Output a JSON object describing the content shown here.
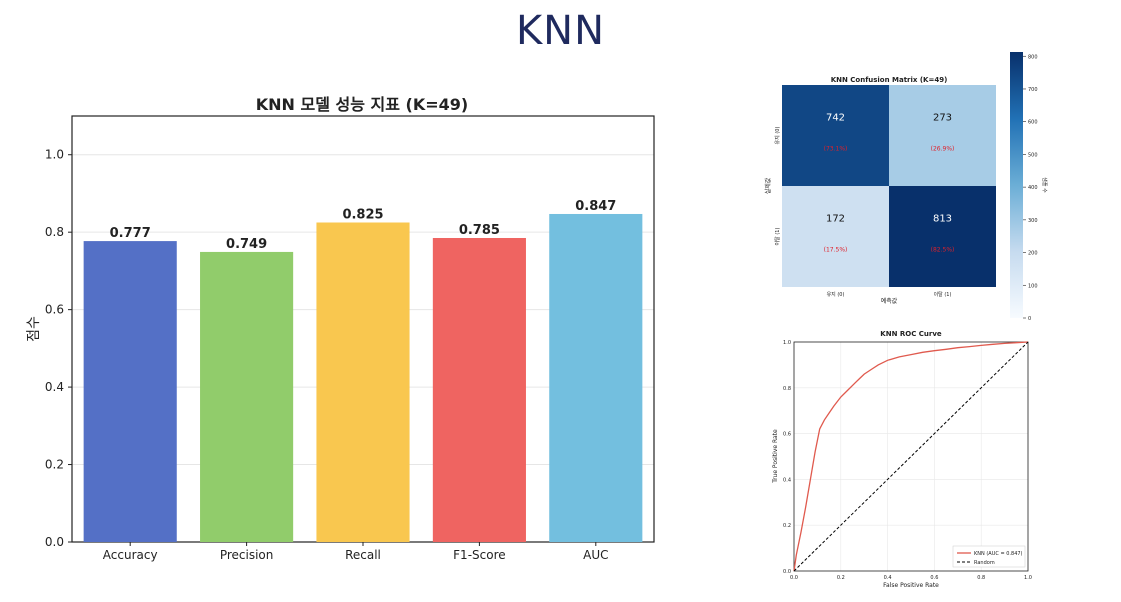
{
  "slide": {
    "title": "KNN"
  },
  "colors": {
    "bars": [
      "#5470c6",
      "#91cc6b",
      "#f9c74f",
      "#ef6461",
      "#73bfdf"
    ],
    "heat_low": "#f7fbff",
    "heat_high": "#08306b",
    "roc_line": "#e05a4e",
    "random_line": "#000000",
    "pct_text": "#e0202a"
  },
  "chart_data": [
    {
      "type": "bar",
      "title": "KNN 모델 성능 지표 (K=49)",
      "xlabel": "",
      "ylabel": "점수",
      "categories": [
        "Accuracy",
        "Precision",
        "Recall",
        "F1-Score",
        "AUC"
      ],
      "values": [
        0.777,
        0.749,
        0.825,
        0.785,
        0.847
      ],
      "value_labels": [
        "0.777",
        "0.749",
        "0.825",
        "0.785",
        "0.847"
      ],
      "ylim": [
        0,
        1.1
      ],
      "yticks": [
        "0.0",
        "0.2",
        "0.4",
        "0.6",
        "0.8",
        "1.0"
      ],
      "grid": true
    },
    {
      "type": "heatmap",
      "title": "KNN Confusion Matrix (K=49)",
      "xlabel": "예측값",
      "ylabel": "실제값",
      "x_categories": [
        "유지 (0)",
        "이탈 (1)"
      ],
      "y_categories": [
        "유지 (0)",
        "이탈 (1)"
      ],
      "values": [
        [
          742,
          273
        ],
        [
          172,
          813
        ]
      ],
      "cell_labels": [
        [
          "742",
          "273"
        ],
        [
          "172",
          "813"
        ]
      ],
      "percent_labels": [
        [
          "(73.1%)",
          "(26.9%)"
        ],
        [
          "(17.5%)",
          "(82.5%)"
        ]
      ],
      "colorbar_label": "샘플 수",
      "colorbar_ticks": [
        "0",
        "100",
        "200",
        "300",
        "400",
        "500",
        "600",
        "700",
        "800"
      ],
      "colorbar_range": [
        0,
        813
      ]
    },
    {
      "type": "line",
      "title": "KNN ROC Curve",
      "xlabel": "False Positive Rate",
      "ylabel": "True Positive Rate",
      "xlim": [
        0,
        1
      ],
      "ylim": [
        0,
        1
      ],
      "xticks": [
        "0.0",
        "0.2",
        "0.4",
        "0.6",
        "0.8",
        "1.0"
      ],
      "yticks": [
        "0.0",
        "0.2",
        "0.4",
        "0.6",
        "0.8",
        "1.0"
      ],
      "grid": true,
      "legend": "bottom-right",
      "series": [
        {
          "name": "KNN (AUC = 0.847)",
          "x": [
            0,
            0.01,
            0.03,
            0.05,
            0.07,
            0.09,
            0.11,
            0.13,
            0.15,
            0.17,
            0.2,
            0.23,
            0.26,
            0.28,
            0.3,
            0.33,
            0.36,
            0.4,
            0.45,
            0.5,
            0.55,
            0.6,
            0.65,
            0.7,
            0.75,
            0.8,
            0.85,
            0.9,
            0.95,
            1.0
          ],
          "y": [
            0,
            0.07,
            0.17,
            0.28,
            0.4,
            0.52,
            0.62,
            0.66,
            0.69,
            0.72,
            0.76,
            0.79,
            0.82,
            0.84,
            0.86,
            0.88,
            0.9,
            0.92,
            0.935,
            0.945,
            0.955,
            0.962,
            0.968,
            0.975,
            0.98,
            0.985,
            0.99,
            0.994,
            0.997,
            1.0
          ]
        },
        {
          "name": "Random",
          "x": [
            0,
            1
          ],
          "y": [
            0,
            1
          ]
        }
      ]
    }
  ]
}
